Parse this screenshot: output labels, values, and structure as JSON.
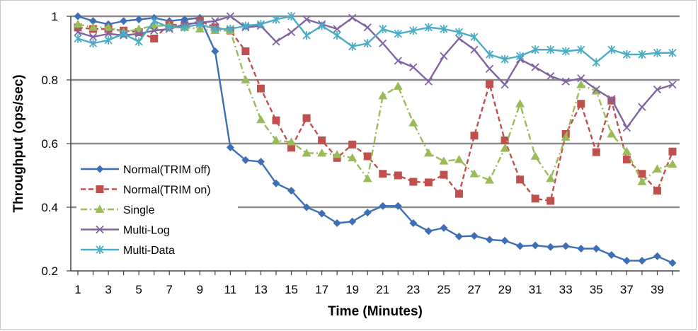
{
  "chart_data": {
    "type": "line",
    "title": "",
    "xlabel": "Time (Minutes)",
    "ylabel": "Throughput (ops/sec)",
    "ylim": [
      0.2,
      1.0
    ],
    "xlim": [
      1,
      40
    ],
    "yticks": [
      "0.2",
      "0.4",
      "0.6",
      "0.8",
      "1"
    ],
    "xticks": [
      "1",
      "3",
      "5",
      "7",
      "9",
      "11",
      "13",
      "15",
      "17",
      "19",
      "21",
      "23",
      "25",
      "27",
      "29",
      "31",
      "33",
      "35",
      "37",
      "39"
    ],
    "grid": "horizontal",
    "legend_position": "bottom-left",
    "x": [
      1,
      2,
      3,
      4,
      5,
      6,
      7,
      8,
      9,
      10,
      11,
      12,
      13,
      14,
      15,
      16,
      17,
      18,
      19,
      20,
      21,
      22,
      23,
      24,
      25,
      26,
      27,
      28,
      29,
      30,
      31,
      32,
      33,
      34,
      35,
      36,
      37,
      38,
      39,
      40
    ],
    "series": [
      {
        "name": "Normal(TRIM off)",
        "color": "#3e6fb5",
        "dash": "solid",
        "marker": "diamond",
        "values": [
          1.0,
          0.985,
          0.975,
          0.985,
          0.99,
          0.995,
          0.985,
          0.99,
          0.995,
          0.89,
          0.588,
          0.548,
          0.543,
          0.475,
          0.452,
          0.4,
          0.38,
          0.35,
          0.355,
          0.383,
          0.404,
          0.404,
          0.35,
          0.325,
          0.335,
          0.308,
          0.31,
          0.298,
          0.295,
          0.278,
          0.28,
          0.275,
          0.278,
          0.27,
          0.27,
          0.25,
          0.232,
          0.232,
          0.246,
          0.225
        ]
      },
      {
        "name": "Normal(TRIM on)",
        "color": "#c0504d",
        "dash": "dashed",
        "marker": "square",
        "values": [
          0.965,
          0.96,
          0.96,
          0.955,
          0.95,
          0.93,
          0.975,
          0.97,
          0.985,
          0.965,
          0.955,
          0.89,
          0.773,
          0.673,
          0.587,
          0.68,
          0.61,
          0.555,
          0.597,
          0.56,
          0.505,
          0.5,
          0.48,
          0.478,
          0.502,
          0.442,
          0.625,
          0.787,
          0.61,
          0.487,
          0.427,
          0.42,
          0.63,
          0.725,
          0.573,
          0.735,
          0.55,
          0.505,
          0.452,
          0.575
        ]
      },
      {
        "name": "Single",
        "color": "#9bbb59",
        "dash": "dashdot",
        "marker": "triangle",
        "values": [
          0.975,
          0.965,
          0.965,
          0.95,
          0.96,
          0.97,
          0.97,
          0.965,
          0.96,
          0.955,
          0.955,
          0.8,
          0.675,
          0.61,
          0.605,
          0.57,
          0.57,
          0.565,
          0.555,
          0.49,
          0.75,
          0.78,
          0.665,
          0.57,
          0.545,
          0.55,
          0.505,
          0.485,
          0.585,
          0.725,
          0.56,
          0.49,
          0.62,
          0.785,
          0.765,
          0.63,
          0.575,
          0.48,
          0.52,
          0.535
        ]
      },
      {
        "name": "Multi-Log",
        "color": "#8064a2",
        "dash": "solid",
        "marker": "x",
        "values": [
          0.95,
          0.935,
          0.945,
          0.94,
          0.945,
          0.955,
          0.96,
          0.975,
          0.98,
          0.985,
          1.0,
          0.965,
          0.97,
          0.92,
          0.95,
          0.99,
          0.975,
          0.96,
          0.995,
          0.965,
          0.915,
          0.86,
          0.84,
          0.795,
          0.875,
          0.93,
          0.895,
          0.835,
          0.785,
          0.865,
          0.84,
          0.812,
          0.795,
          0.805,
          0.77,
          0.74,
          0.65,
          0.715,
          0.77,
          0.785
        ]
      },
      {
        "name": "Multi-Data",
        "color": "#4bacc6",
        "dash": "solid",
        "marker": "star",
        "values": [
          0.93,
          0.915,
          0.925,
          0.945,
          0.92,
          0.985,
          0.965,
          0.965,
          0.975,
          0.96,
          0.96,
          0.97,
          0.975,
          0.99,
          1.0,
          0.94,
          0.97,
          0.94,
          0.905,
          0.915,
          0.96,
          0.945,
          0.955,
          0.965,
          0.96,
          0.95,
          0.935,
          0.88,
          0.865,
          0.875,
          0.895,
          0.895,
          0.89,
          0.895,
          0.855,
          0.895,
          0.88,
          0.88,
          0.885,
          0.885
        ]
      }
    ]
  }
}
